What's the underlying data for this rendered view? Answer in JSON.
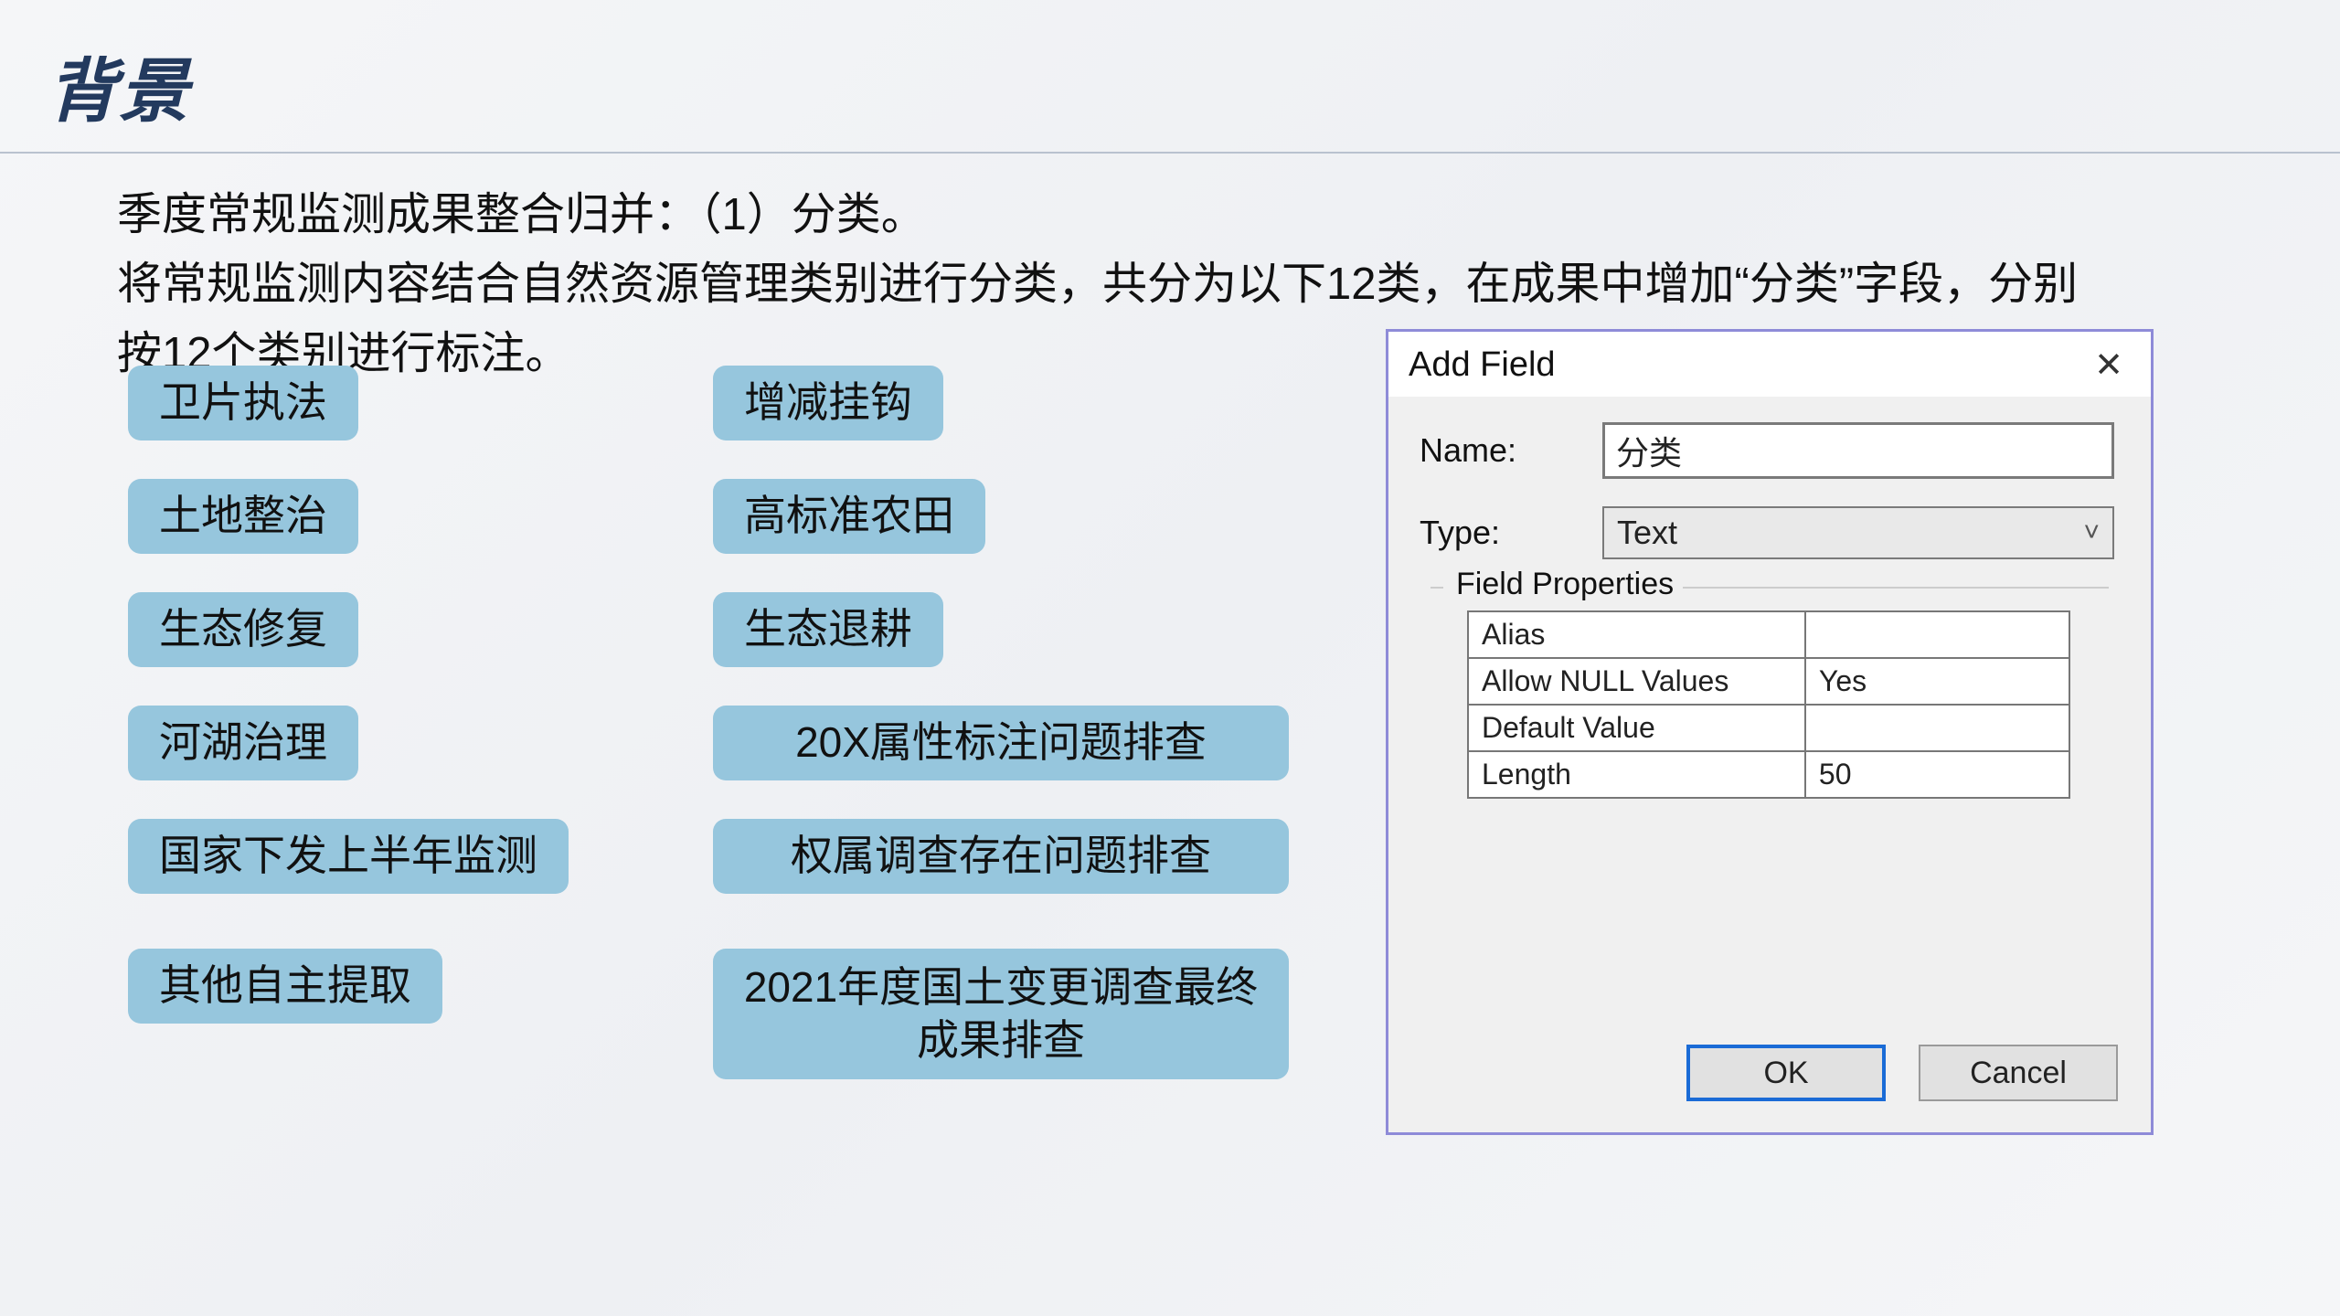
{
  "slide": {
    "title": "背景",
    "paragraph": "季度常规监测成果整合归并：（1）分类。\n将常规监测内容结合自然资源管理类别进行分类，共分为以下12类，在成果中增加“分类”字段，分别按12个类别进行标注。"
  },
  "categories": {
    "col1": [
      "卫片执法",
      "土地整治",
      "生态修复",
      "河湖治理",
      "国家下发上半年监测",
      "其他自主提取"
    ],
    "col2": [
      "增减挂钩",
      "高标准农田",
      "生态退耕",
      "20X属性标注问题排查",
      "权属调查存在问题排查",
      "2021年度国土变更调查最终成果排查"
    ]
  },
  "dialog": {
    "title": "Add Field",
    "name_label": "Name:",
    "name_value": "分类",
    "type_label": "Type:",
    "type_value": "Text",
    "fieldset_title": "Field Properties",
    "properties": [
      {
        "label": "Alias",
        "value": ""
      },
      {
        "label": "Allow NULL Values",
        "value": "Yes"
      },
      {
        "label": "Default Value",
        "value": ""
      },
      {
        "label": "Length",
        "value": "50"
      }
    ],
    "ok": "OK",
    "cancel": "Cancel"
  },
  "colors": {
    "title": "#233a5e",
    "category_bg": "#96c6dd",
    "dialog_border": "#8e8bd8",
    "ok_border": "#1a6bd6"
  }
}
